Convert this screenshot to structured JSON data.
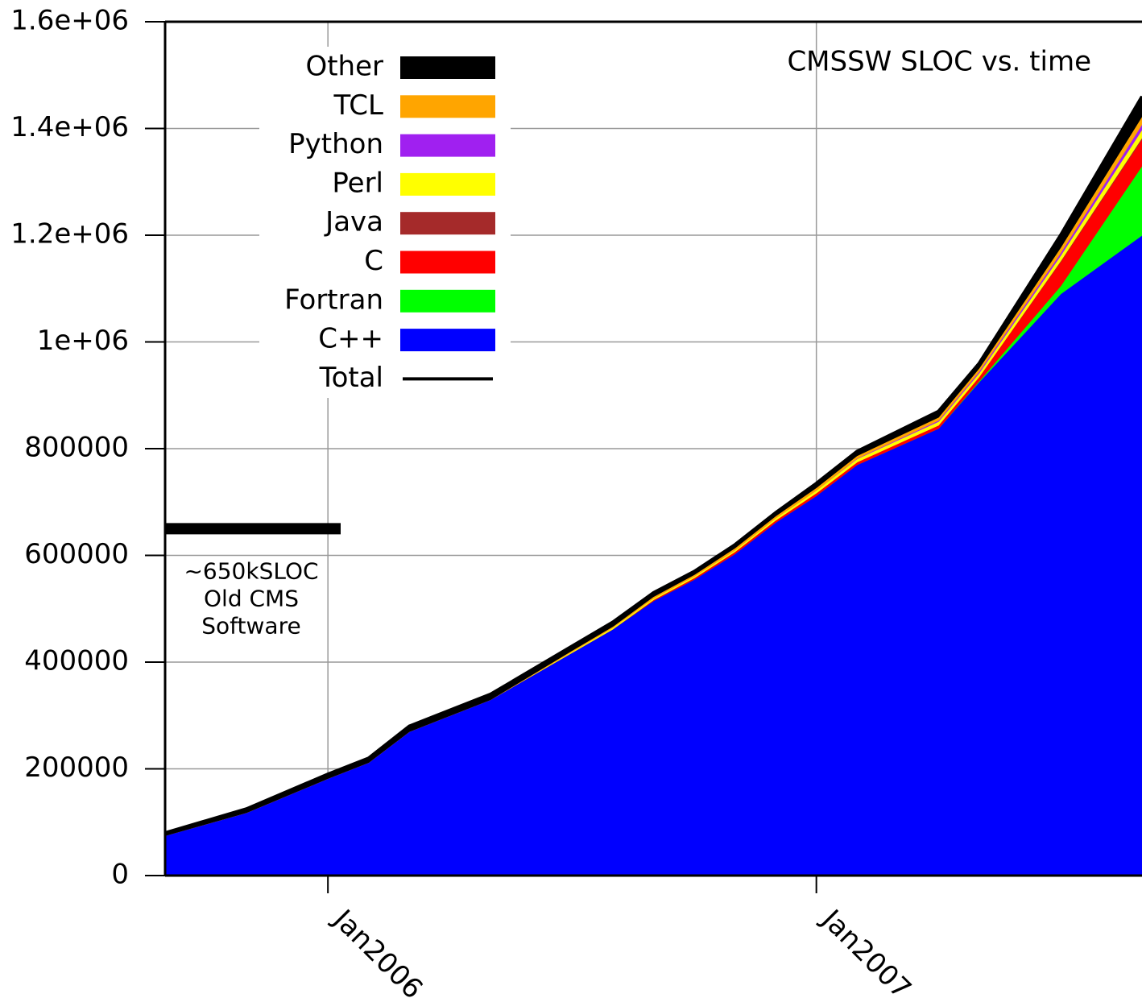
{
  "chart_data": {
    "type": "stacked-area",
    "title": "CMSSW SLOC vs. time",
    "x": [
      "2005-09",
      "2005-11",
      "2006-01",
      "2006-02",
      "2006-03",
      "2006-04",
      "2006-05",
      "2006-07",
      "2006-08",
      "2006-09",
      "2006-10",
      "2006-11",
      "2006-12",
      "2007-01",
      "2007-02",
      "2007-04",
      "2007-05",
      "2007-07",
      "2007-09"
    ],
    "xlim": [
      "2005-09",
      "2007-09"
    ],
    "xticks": [
      {
        "value": "2006-01",
        "label": "Jan2006"
      },
      {
        "value": "2007-01",
        "label": "Jan2007"
      }
    ],
    "ylim": [
      0,
      1600000
    ],
    "yticks": [
      0,
      200000,
      400000,
      600000,
      800000,
      {
        "value": 1000000,
        "label": "1e+06"
      },
      {
        "value": 1200000,
        "label": "1.2e+06"
      },
      {
        "value": 1400000,
        "label": "1.4e+06"
      },
      {
        "value": 1600000,
        "label": "1.6e+06"
      }
    ],
    "grid": true,
    "legend": "upper left",
    "series": [
      {
        "name": "Other",
        "color": "#000000",
        "values": [
          5000,
          7000,
          8000,
          8000,
          10000,
          10000,
          10000,
          8000,
          8000,
          7000,
          6000,
          6000,
          6000,
          8000,
          8000,
          11000,
          9000,
          23000,
          37000
        ]
      },
      {
        "name": "TCL",
        "color": "#ffa500",
        "values": [
          0,
          0,
          0,
          0,
          0,
          0,
          0,
          2000,
          2000,
          3000,
          3000,
          4000,
          4000,
          5000,
          5000,
          6000,
          6000,
          10000,
          15000
        ]
      },
      {
        "name": "Python",
        "color": "#a020f0",
        "values": [
          0,
          0,
          0,
          0,
          0,
          0,
          0,
          0,
          0,
          0,
          0,
          0,
          0,
          0,
          1000,
          2000,
          3000,
          5000,
          10000
        ]
      },
      {
        "name": "Perl",
        "color": "#ffff00",
        "values": [
          0,
          0,
          0,
          0,
          0,
          0,
          0,
          2000,
          3000,
          3000,
          3000,
          3000,
          4000,
          5000,
          6000,
          7000,
          7000,
          10000,
          15000
        ]
      },
      {
        "name": "Java",
        "color": "#a52a2a",
        "values": [
          0,
          0,
          0,
          0,
          0,
          0,
          0,
          0,
          0,
          0,
          0,
          0,
          0,
          0,
          0,
          0,
          0,
          2000,
          3000
        ]
      },
      {
        "name": "C",
        "color": "#ff0000",
        "values": [
          0,
          0,
          0,
          0,
          0,
          0,
          0,
          0,
          0,
          2000,
          3000,
          4000,
          4000,
          5000,
          5000,
          6000,
          8000,
          45000,
          50000
        ]
      },
      {
        "name": "Fortran",
        "color": "#00ff00",
        "values": [
          0,
          0,
          0,
          0,
          0,
          0,
          0,
          0,
          0,
          0,
          0,
          0,
          0,
          0,
          0,
          0,
          2000,
          15000,
          130000
        ]
      },
      {
        "name": "C++",
        "color": "#0000ff",
        "values": [
          75000,
          118000,
          182000,
          212000,
          270000,
          300000,
          330000,
          418000,
          462000,
          515000,
          555000,
          603000,
          662000,
          712000,
          770000,
          838000,
          925000,
          1090000,
          1200000
        ]
      },
      {
        "name": "Total",
        "color": "#000000",
        "line": true,
        "values": [
          80000,
          125000,
          190000,
          220000,
          280000,
          310000,
          340000,
          430000,
          475000,
          530000,
          570000,
          620000,
          680000,
          735000,
          795000,
          870000,
          960000,
          1200000,
          1460000
        ]
      }
    ],
    "reference": {
      "value": 650000,
      "label_lines": [
        "~650kSLOC",
        "Old CMS",
        "Software"
      ]
    }
  }
}
